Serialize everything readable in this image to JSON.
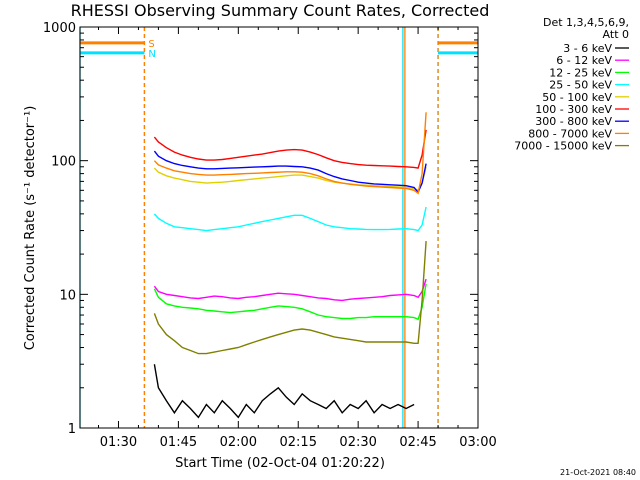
{
  "chart_data": {
    "type": "line",
    "title": "RHESSI Observing Summary Count Rates, Corrected",
    "xlabel": "Start Time (02-Oct-04 01:20:22)",
    "ylabel": "Corrected Count Rate (s⁻¹ detector⁻¹)",
    "yscale": "log",
    "ylim": [
      1,
      1000
    ],
    "xlim_minutes_after_0100": [
      20.37,
      120
    ],
    "x_ticks": [
      {
        "label": "01:30",
        "minute": 30
      },
      {
        "label": "01:45",
        "minute": 45
      },
      {
        "label": "02:00",
        "minute": 60
      },
      {
        "label": "02:15",
        "minute": 75
      },
      {
        "label": "02:30",
        "minute": 90
      },
      {
        "label": "02:45",
        "minute": 105
      },
      {
        "label": "03:00",
        "minute": 120
      }
    ],
    "y_ticks": [
      "1",
      "10",
      "100",
      "1000"
    ],
    "legend_header": [
      "Det 1,3,4,5,6,9,",
      "Att 0"
    ],
    "legend_position": "right",
    "flags": [
      {
        "label": "S",
        "color": "#ff8000",
        "intervals": [
          [
            20.37,
            36.5
          ],
          [
            110,
            120
          ]
        ],
        "level": 760
      },
      {
        "label": "N",
        "color": "#00e0ff",
        "intervals": [
          [
            20.37,
            36.5
          ],
          [
            110,
            120
          ]
        ],
        "level": 640
      }
    ],
    "boundaries": [
      {
        "minute": 20.37,
        "color": "#00e0ff",
        "dash": false
      },
      {
        "minute": 36.5,
        "color": "#00e0ff",
        "dash": true
      },
      {
        "minute": 36.5,
        "color": "#ff8000",
        "dash": true
      },
      {
        "minute": 101.2,
        "color": "#00e0ff",
        "dash": false
      },
      {
        "minute": 110,
        "color": "#00e0ff",
        "dash": true
      },
      {
        "minute": 110,
        "color": "#ff8000",
        "dash": true
      },
      {
        "minute": 101.7,
        "color": "#ff8000",
        "dash": false
      }
    ],
    "series": [
      {
        "name": "3 - 6 keV",
        "color": "#000000",
        "x": [
          39,
          40,
          42,
          44,
          46,
          48,
          50,
          52,
          54,
          56,
          58,
          60,
          62,
          64,
          66,
          68,
          70,
          72,
          74,
          76,
          78,
          80,
          82,
          84,
          86,
          88,
          90,
          92,
          94,
          96,
          98,
          100,
          102,
          104
        ],
        "y": [
          3,
          2,
          1.6,
          1.3,
          1.6,
          1.4,
          1.2,
          1.5,
          1.3,
          1.6,
          1.4,
          1.2,
          1.5,
          1.3,
          1.6,
          1.8,
          2,
          1.7,
          1.5,
          1.8,
          1.6,
          1.5,
          1.4,
          1.6,
          1.3,
          1.5,
          1.4,
          1.6,
          1.3,
          1.5,
          1.4,
          1.5,
          1.4,
          1.5
        ]
      },
      {
        "name": "6 - 12 keV",
        "color": "#ff00ff",
        "x": [
          39,
          40,
          42,
          44,
          46,
          48,
          50,
          52,
          54,
          56,
          58,
          60,
          62,
          64,
          66,
          68,
          70,
          72,
          74,
          76,
          78,
          80,
          82,
          84,
          86,
          88,
          90,
          92,
          94,
          96,
          98,
          100,
          102,
          104,
          105,
          106,
          107
        ],
        "y": [
          11.5,
          10.5,
          10,
          9.8,
          9.6,
          9.4,
          9.3,
          9.5,
          9.7,
          9.6,
          9.4,
          9.3,
          9.5,
          9.6,
          9.8,
          10,
          10.2,
          10.1,
          10,
          9.8,
          9.6,
          9.4,
          9.3,
          9.1,
          9,
          9.2,
          9.3,
          9.4,
          9.5,
          9.6,
          9.8,
          9.9,
          10,
          9.8,
          9.5,
          10.5,
          13
        ]
      },
      {
        "name": "12 - 25 keV",
        "color": "#00ff00",
        "x": [
          39,
          40,
          42,
          44,
          46,
          48,
          50,
          52,
          54,
          56,
          58,
          60,
          62,
          64,
          66,
          68,
          70,
          72,
          74,
          76,
          78,
          80,
          82,
          84,
          86,
          88,
          90,
          92,
          94,
          96,
          98,
          100,
          102,
          104,
          105,
          106,
          107
        ],
        "y": [
          11,
          9.5,
          8.5,
          8.2,
          8,
          7.9,
          7.8,
          7.6,
          7.5,
          7.4,
          7.3,
          7.4,
          7.5,
          7.6,
          7.8,
          8,
          8.2,
          8.1,
          8,
          7.8,
          7.4,
          7,
          6.8,
          6.7,
          6.6,
          6.6,
          6.7,
          6.7,
          6.8,
          6.8,
          6.8,
          6.8,
          6.8,
          6.7,
          6.5,
          8,
          12
        ]
      },
      {
        "name": "25 - 50 keV",
        "color": "#00ffff",
        "x": [
          39,
          40,
          42,
          44,
          46,
          48,
          50,
          52,
          54,
          56,
          58,
          60,
          62,
          64,
          66,
          68,
          70,
          72,
          74,
          76,
          78,
          80,
          82,
          84,
          86,
          88,
          90,
          92,
          94,
          96,
          98,
          100,
          102,
          104,
          105,
          106,
          107
        ],
        "y": [
          40,
          37,
          34,
          32,
          31.5,
          31,
          30.5,
          30,
          30.5,
          31,
          31.5,
          32,
          33,
          34,
          35,
          36,
          37,
          38,
          39,
          39,
          37,
          35,
          33,
          32,
          31.5,
          31,
          30.8,
          30.6,
          30.5,
          30.5,
          30.6,
          30.8,
          31,
          30.5,
          30,
          33,
          45
        ]
      },
      {
        "name": "50 - 100 keV",
        "color": "#e0d000",
        "x": [
          39,
          40,
          42,
          44,
          46,
          48,
          50,
          52,
          54,
          56,
          58,
          60,
          62,
          64,
          66,
          68,
          70,
          72,
          74,
          76,
          78,
          80,
          82,
          84,
          86,
          88,
          90,
          92,
          94,
          96,
          98,
          100,
          102,
          104,
          105,
          106,
          107
        ],
        "y": [
          88,
          82,
          77,
          74,
          72,
          70,
          69,
          68,
          68.5,
          69,
          70,
          71,
          72,
          73,
          74,
          75,
          76,
          77,
          78,
          78,
          76,
          74,
          71,
          69,
          68,
          67,
          66,
          65.5,
          65,
          64.5,
          64,
          63.5,
          63,
          62,
          60,
          68,
          90
        ]
      },
      {
        "name": "100 - 300 keV",
        "color": "#ff0000",
        "x": [
          39,
          40,
          42,
          44,
          46,
          48,
          50,
          52,
          54,
          56,
          58,
          60,
          62,
          64,
          66,
          68,
          70,
          72,
          74,
          76,
          78,
          80,
          82,
          84,
          86,
          88,
          90,
          92,
          94,
          96,
          98,
          100,
          102,
          104,
          105,
          106,
          107
        ],
        "y": [
          150,
          138,
          125,
          116,
          110,
          106,
          103,
          101,
          101,
          102,
          104,
          106,
          108,
          110,
          112,
          115,
          118,
          120,
          121,
          120,
          116,
          111,
          105,
          100,
          97,
          95,
          93.5,
          92.5,
          92,
          91.5,
          91,
          90.5,
          90,
          89,
          88,
          110,
          170
        ]
      },
      {
        "name": "300 - 800 keV",
        "color": "#0000ff",
        "x": [
          39,
          40,
          42,
          44,
          46,
          48,
          50,
          52,
          54,
          56,
          58,
          60,
          62,
          64,
          66,
          68,
          70,
          72,
          74,
          76,
          78,
          80,
          82,
          84,
          86,
          88,
          90,
          92,
          94,
          96,
          98,
          100,
          102,
          104,
          105,
          106,
          107
        ],
        "y": [
          118,
          108,
          100,
          95,
          92,
          90,
          88,
          87,
          87,
          87.5,
          88,
          88.5,
          89,
          89.5,
          90,
          90.5,
          91,
          91,
          90.5,
          90,
          88,
          85,
          80,
          76,
          73,
          71,
          69,
          68,
          67,
          66.5,
          66,
          65.5,
          65,
          63,
          58,
          68,
          95
        ]
      },
      {
        "name": "800 - 7000 keV",
        "color": "#ff8000",
        "x": [
          39,
          40,
          42,
          44,
          46,
          48,
          50,
          52,
          54,
          56,
          58,
          60,
          62,
          64,
          66,
          68,
          70,
          72,
          74,
          76,
          78,
          80,
          82,
          84,
          86,
          88,
          90,
          92,
          94,
          96,
          98,
          100,
          102,
          104,
          105,
          106,
          107
        ],
        "y": [
          100,
          93,
          88,
          84,
          82,
          80,
          79,
          78,
          78,
          78.5,
          79,
          79.5,
          80,
          80.5,
          81,
          81.5,
          82,
          82.5,
          82.5,
          82,
          80,
          77,
          73,
          70,
          68,
          66.5,
          65.5,
          64.5,
          64,
          63.5,
          63,
          62.5,
          62,
          60,
          57,
          80,
          230
        ]
      },
      {
        "name": "7000 - 15000 keV",
        "color": "#808000",
        "x": [
          39,
          40,
          42,
          44,
          46,
          48,
          50,
          52,
          54,
          56,
          58,
          60,
          62,
          64,
          66,
          68,
          70,
          72,
          74,
          76,
          78,
          80,
          82,
          84,
          86,
          88,
          90,
          92,
          94,
          96,
          98,
          100,
          102,
          104,
          105,
          106,
          107
        ],
        "y": [
          7.2,
          6,
          5,
          4.5,
          4,
          3.8,
          3.6,
          3.6,
          3.7,
          3.8,
          3.9,
          4,
          4.2,
          4.4,
          4.6,
          4.8,
          5,
          5.2,
          5.4,
          5.5,
          5.4,
          5.2,
          5,
          4.8,
          4.7,
          4.6,
          4.5,
          4.4,
          4.4,
          4.4,
          4.4,
          4.4,
          4.4,
          4.3,
          4.3,
          9,
          25
        ]
      }
    ],
    "grid": false
  },
  "footer": {
    "timestamp": "21-Oct-2021 08:40"
  }
}
